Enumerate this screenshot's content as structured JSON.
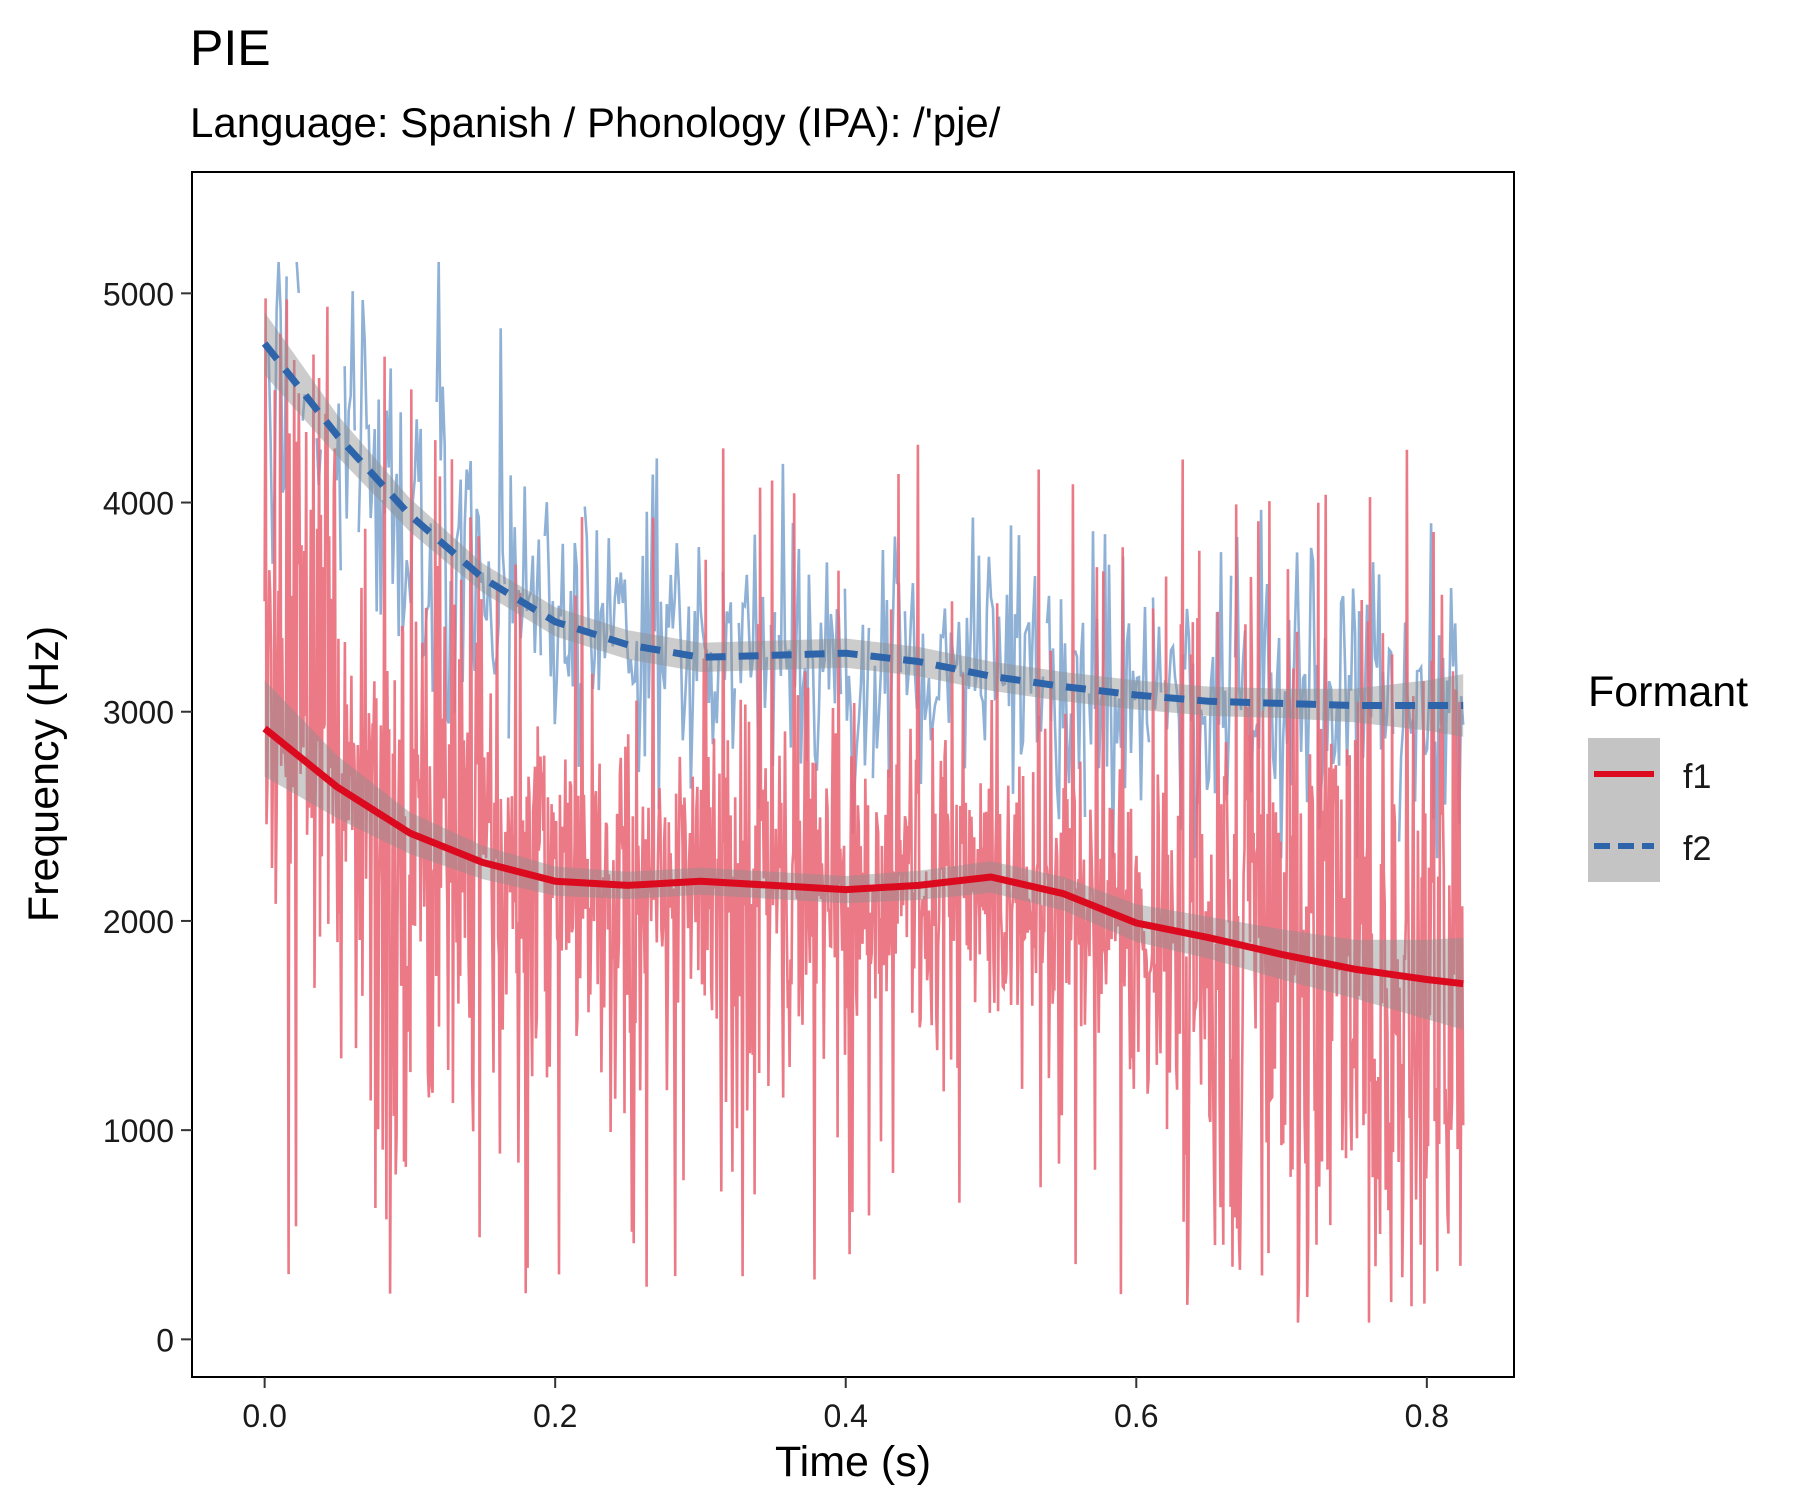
{
  "chart_data": {
    "type": "line",
    "title": "PIE",
    "subtitle": "Language: Spanish / Phonology (IPA): /'pje/",
    "xlabel": "Time (s)",
    "ylabel": "Frequency (Hz)",
    "xlim": [
      -0.05,
      0.86
    ],
    "ylim": [
      -180,
      5580
    ],
    "x_ticks": [
      0.0,
      0.2,
      0.4,
      0.6,
      0.8
    ],
    "x_tick_labels": [
      "0.0",
      "0.2",
      "0.4",
      "0.6",
      "0.8"
    ],
    "y_ticks": [
      0,
      1000,
      2000,
      3000,
      4000,
      5000
    ],
    "y_tick_labels": [
      "0",
      "1000",
      "2000",
      "3000",
      "4000",
      "5000"
    ],
    "grid": false,
    "legend": {
      "title": "Formant",
      "position": "right",
      "entries": [
        {
          "label": "f1",
          "color": "#dc0a1e",
          "style": "solid"
        },
        {
          "label": "f2",
          "color": "#2e64aa",
          "style": "dashed"
        }
      ]
    },
    "series": [
      {
        "name": "f1",
        "role": "raw",
        "color": "#ea6a79",
        "x_range": [
          0.0,
          0.825
        ],
        "samples": 1300,
        "sample_seed": 7
      },
      {
        "name": "f2",
        "role": "raw",
        "color": "#8aadd4",
        "x_range": [
          0.0,
          0.825
        ],
        "samples": 600,
        "sample_seed": 19
      },
      {
        "name": "f1",
        "role": "smooth",
        "color": "#dc0a1e",
        "style": "solid",
        "x": [
          0.0,
          0.05,
          0.1,
          0.15,
          0.2,
          0.25,
          0.3,
          0.35,
          0.4,
          0.45,
          0.5,
          0.55,
          0.6,
          0.65,
          0.7,
          0.75,
          0.8,
          0.825
        ],
        "y": [
          2920,
          2640,
          2420,
          2280,
          2190,
          2170,
          2190,
          2170,
          2150,
          2170,
          2210,
          2130,
          1990,
          1920,
          1840,
          1770,
          1720,
          1700
        ],
        "ci_half_width": [
          230,
          150,
          100,
          80,
          70,
          65,
          65,
          65,
          65,
          70,
          75,
          80,
          90,
          100,
          120,
          140,
          190,
          220
        ]
      },
      {
        "name": "f2",
        "role": "smooth",
        "color": "#2e64aa",
        "style": "dashed",
        "x": [
          0.0,
          0.05,
          0.1,
          0.15,
          0.2,
          0.25,
          0.3,
          0.35,
          0.4,
          0.45,
          0.5,
          0.55,
          0.6,
          0.65,
          0.7,
          0.75,
          0.8,
          0.825
        ],
        "y": [
          4760,
          4320,
          3940,
          3640,
          3430,
          3320,
          3260,
          3270,
          3280,
          3240,
          3170,
          3120,
          3080,
          3050,
          3040,
          3030,
          3030,
          3030
        ],
        "ci_half_width": [
          150,
          100,
          80,
          70,
          70,
          70,
          70,
          70,
          70,
          70,
          70,
          70,
          70,
          70,
          70,
          80,
          120,
          150
        ]
      }
    ]
  }
}
